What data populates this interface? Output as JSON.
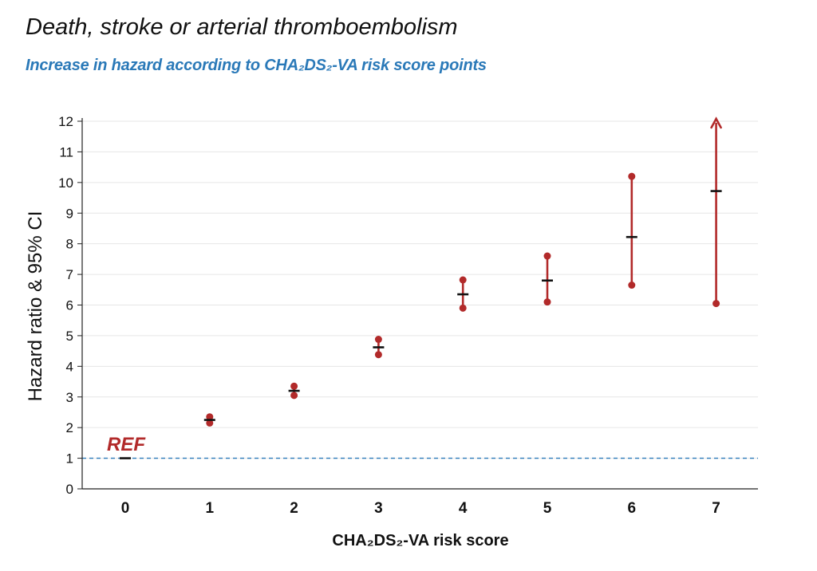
{
  "chart_data": {
    "type": "scatter",
    "title": "Death, stroke or arterial thromboembolism",
    "subtitle": "Increase in hazard according to CHA₂DS₂-VA risk score points",
    "xlabel": "CHA₂DS₂-VA risk score",
    "ylabel": "Hazard ratio & 95% CI",
    "categories": [
      "0",
      "1",
      "2",
      "3",
      "4",
      "5",
      "6",
      "7"
    ],
    "ylim": [
      0,
      12
    ],
    "yticks": [
      "0",
      "1",
      "2",
      "3",
      "4",
      "5",
      "6",
      "7",
      "8",
      "9",
      "10",
      "11",
      "12"
    ],
    "grid": true,
    "reference_line": 1,
    "reference_label": "REF",
    "points": [
      {
        "x": "0",
        "hr": 1.0,
        "lower": null,
        "upper": null,
        "reference": true
      },
      {
        "x": "1",
        "hr": 2.25,
        "lower": 2.15,
        "upper": 2.35
      },
      {
        "x": "2",
        "hr": 3.2,
        "lower": 3.05,
        "upper": 3.35
      },
      {
        "x": "3",
        "hr": 4.62,
        "lower": 4.38,
        "upper": 4.88
      },
      {
        "x": "4",
        "hr": 6.35,
        "lower": 5.9,
        "upper": 6.82
      },
      {
        "x": "5",
        "hr": 6.8,
        "lower": 6.1,
        "upper": 7.6
      },
      {
        "x": "6",
        "hr": 8.22,
        "lower": 6.65,
        "upper": 10.2
      },
      {
        "x": "7",
        "hr": 9.72,
        "lower": 6.05,
        "upper": 12,
        "upper_truncated": true
      }
    ],
    "colors": {
      "ci": "#b22a2a",
      "estimate": "#111111",
      "reference_line": "#2a79b8",
      "grid": "#e6e6e6"
    }
  }
}
